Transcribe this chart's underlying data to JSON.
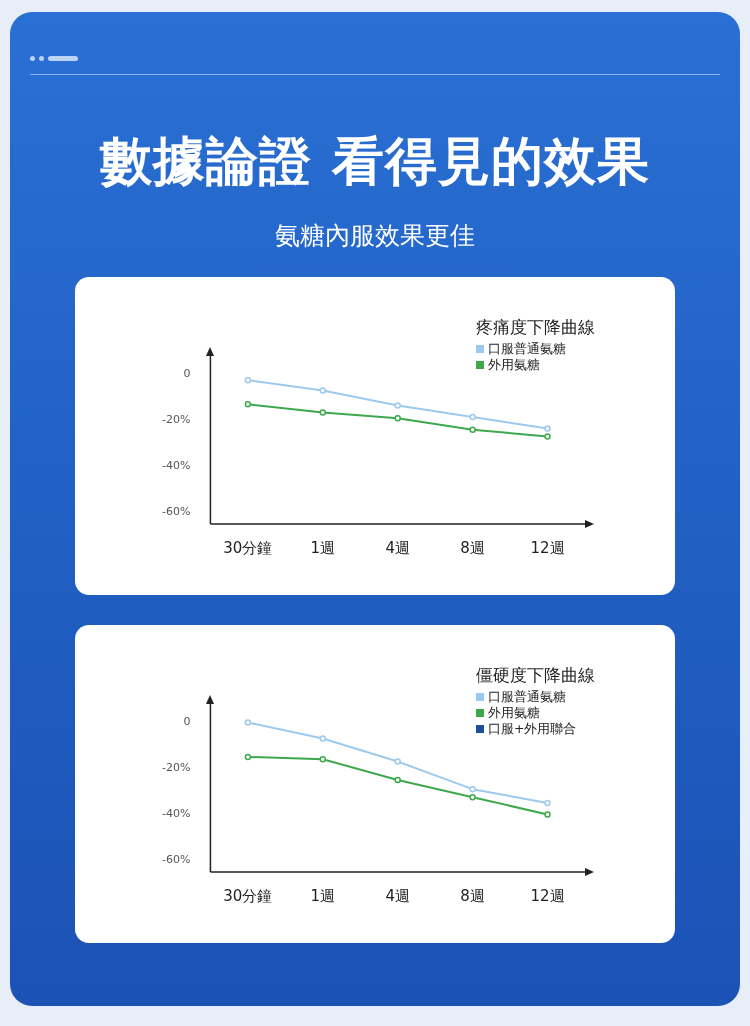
{
  "chart_data": [
    {
      "type": "other",
      "title": "數據論證 看得見的效果",
      "subtitle": "氨糖內服效果更佳"
    },
    {
      "type": "line",
      "title": "疼痛度下降曲線",
      "categories": [
        "30分鐘",
        "1週",
        "4週",
        "8週",
        "12週"
      ],
      "series": [
        {
          "name": "口服普通氨糖",
          "color": "#9ccaee",
          "values": [
            -2.5,
            -7,
            -13.5,
            -18.5,
            -23.5
          ]
        },
        {
          "name": "外用氨糖",
          "color": "#3ea94c",
          "values": [
            -13,
            -16.5,
            -19,
            -24,
            -27
          ]
        }
      ],
      "ylim": [
        -65,
        8
      ],
      "yticks": [
        {
          "value": -60,
          "label": "-60%"
        },
        {
          "value": -40,
          "label": "-40%"
        },
        {
          "value": -20,
          "label": "-20%"
        },
        0
      ],
      "marker": "circle",
      "legend": "top right"
    },
    {
      "type": "line",
      "title": "僵硬度下降曲線",
      "categories": [
        "30分鐘",
        "1週",
        "4週",
        "8週",
        "12週"
      ],
      "series": [
        {
          "name": "口服普通氨糖",
          "color": "#9ccaee",
          "values": [
            0,
            -7,
            -17,
            -29,
            -35
          ]
        },
        {
          "name": "外用氨糖",
          "color": "#3ea94c",
          "values": [
            -15,
            -16,
            -25,
            -32.5,
            -40
          ]
        },
        {
          "name": "口服+外用聯合",
          "color": "#1f4e9c",
          "values": [
            null,
            null,
            null,
            null,
            null
          ]
        }
      ],
      "ylim": [
        -65,
        8
      ],
      "yticks": [
        {
          "value": -60,
          "label": "-60%"
        },
        {
          "value": -40,
          "label": "-40%"
        },
        {
          "value": -20,
          "label": "-20%"
        },
        0
      ],
      "marker": "circle",
      "legend": "top right"
    }
  ]
}
